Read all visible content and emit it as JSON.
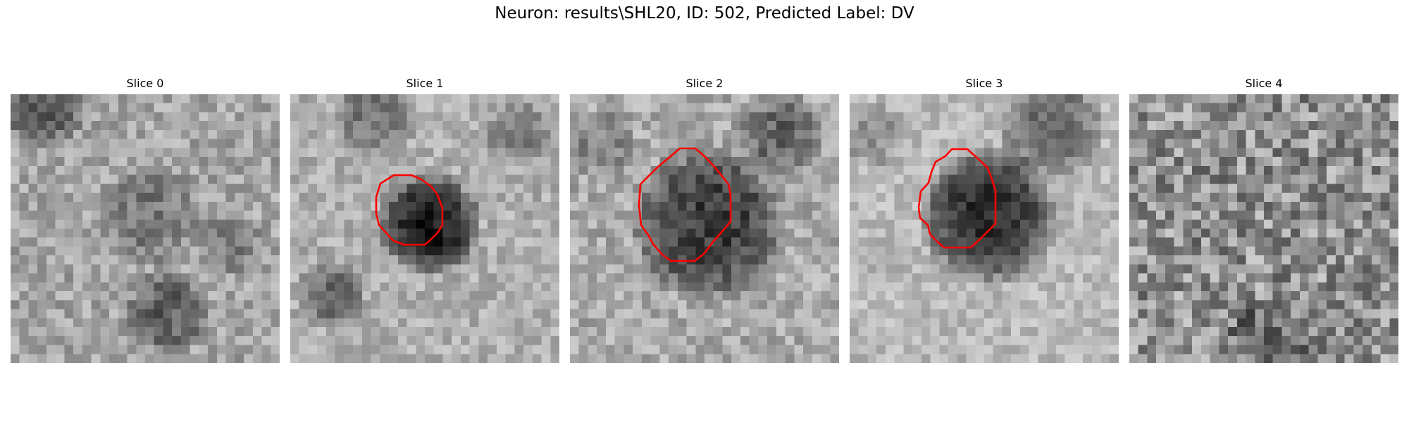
{
  "figure": {
    "title": "Neuron: results\\SHL20, ID: 502, Predicted Label: DV"
  },
  "slices": [
    {
      "title": "Slice 0",
      "has_contour": false,
      "contour_color": "#ff0000"
    },
    {
      "title": "Slice 1",
      "has_contour": true,
      "contour_color": "#ff0000"
    },
    {
      "title": "Slice 2",
      "has_contour": true,
      "contour_color": "#ff0000"
    },
    {
      "title": "Slice 3",
      "has_contour": true,
      "contour_color": "#ff0000"
    },
    {
      "title": "Slice 4",
      "has_contour": false,
      "contour_color": "#ff0000"
    }
  ],
  "colormap": "grayscale"
}
